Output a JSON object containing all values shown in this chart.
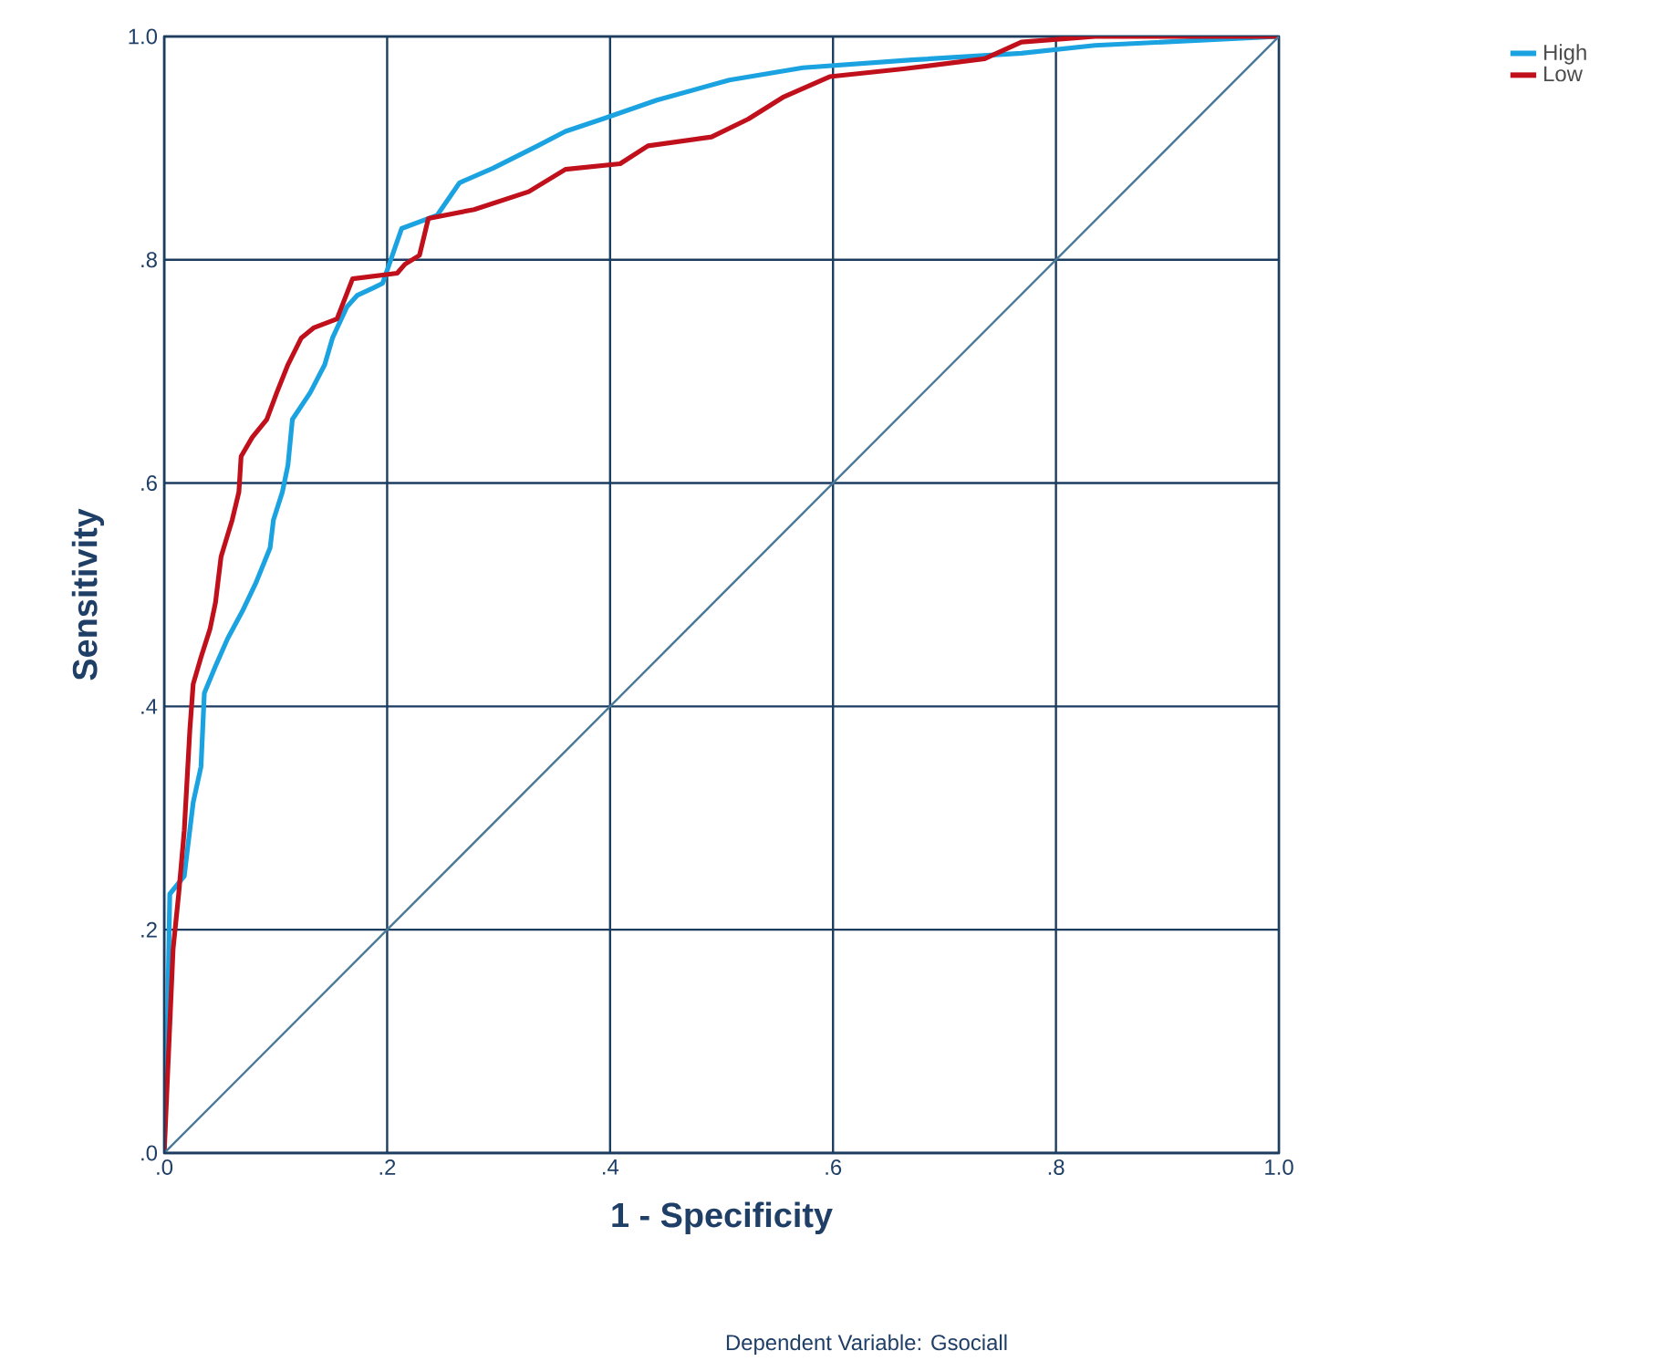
{
  "chart_data": {
    "type": "line",
    "xlabel": "1 - Specificity",
    "ylabel": "Sensitivity",
    "annotations": [
      "Dependent Variable: Gsociall"
    ],
    "xlim": [
      0,
      1
    ],
    "ylim": [
      0,
      1
    ],
    "xticks": [
      {
        "value": 0,
        "label": ".0"
      },
      {
        "value": 0.2,
        "label": ".2"
      },
      {
        "value": 0.4,
        "label": ".4"
      },
      {
        "value": 0.6,
        "label": ".6"
      },
      {
        "value": 0.8,
        "label": ".8"
      },
      {
        "value": 1,
        "label": "1.0"
      }
    ],
    "yticks": [
      {
        "value": 0,
        "label": ".0"
      },
      {
        "value": 0.2,
        "label": ".2"
      },
      {
        "value": 0.4,
        "label": ".4"
      },
      {
        "value": 0.6,
        "label": ".6"
      },
      {
        "value": 0.8,
        "label": ".8"
      },
      {
        "value": 1,
        "label": "1.0"
      }
    ],
    "grid": true,
    "legend": "top right",
    "series": [
      {
        "name": "High",
        "color": "#1aa3e0",
        "x": [
          0,
          0.003,
          0.005,
          0.018,
          0.021,
          0.026,
          0.033,
          0.036,
          0.046,
          0.057,
          0.07,
          0.082,
          0.095,
          0.098,
          0.106,
          0.111,
          0.115,
          0.131,
          0.144,
          0.151,
          0.164,
          0.173,
          0.188,
          0.196,
          0.213,
          0.245,
          0.265,
          0.295,
          0.335,
          0.36,
          0.393,
          0.442,
          0.507,
          0.573,
          0.671,
          0.769,
          0.835,
          1
        ],
        "values": [
          0,
          0.118,
          0.232,
          0.248,
          0.273,
          0.314,
          0.346,
          0.412,
          0.436,
          0.461,
          0.485,
          0.51,
          0.542,
          0.567,
          0.592,
          0.616,
          0.657,
          0.681,
          0.706,
          0.73,
          0.758,
          0.768,
          0.775,
          0.779,
          0.828,
          0.84,
          0.869,
          0.882,
          0.902,
          0.915,
          0.926,
          0.943,
          0.961,
          0.972,
          0.979,
          0.985,
          0.992,
          1
        ]
      },
      {
        "name": "Low",
        "color": "#c0101c",
        "x": [
          0,
          0.003,
          0.008,
          0.013,
          0.018,
          0.023,
          0.026,
          0.033,
          0.041,
          0.046,
          0.051,
          0.061,
          0.067,
          0.069,
          0.079,
          0.092,
          0.101,
          0.111,
          0.123,
          0.134,
          0.155,
          0.169,
          0.209,
          0.216,
          0.229,
          0.237,
          0.278,
          0.327,
          0.36,
          0.409,
          0.434,
          0.491,
          0.524,
          0.556,
          0.597,
          0.663,
          0.736,
          0.769,
          0.835,
          1
        ],
        "values": [
          0,
          0.069,
          0.183,
          0.232,
          0.289,
          0.379,
          0.42,
          0.444,
          0.469,
          0.493,
          0.534,
          0.567,
          0.592,
          0.624,
          0.641,
          0.657,
          0.681,
          0.706,
          0.73,
          0.739,
          0.747,
          0.783,
          0.788,
          0.796,
          0.804,
          0.837,
          0.845,
          0.861,
          0.881,
          0.886,
          0.902,
          0.91,
          0.926,
          0.946,
          0.964,
          0.971,
          0.98,
          0.995,
          1,
          1
        ]
      },
      {
        "color": "#4a7898",
        "x": [
          0,
          1
        ],
        "values": [
          0,
          1
        ]
      }
    ]
  }
}
